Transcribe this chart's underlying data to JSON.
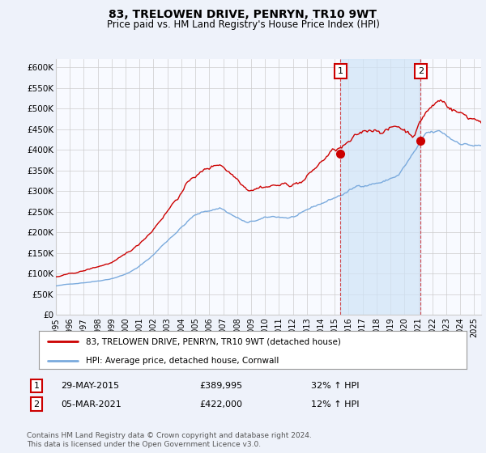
{
  "title": "83, TRELOWEN DRIVE, PENRYN, TR10 9WT",
  "subtitle": "Price paid vs. HM Land Registry's House Price Index (HPI)",
  "title_fontsize": 10,
  "subtitle_fontsize": 8.5,
  "ylim": [
    0,
    620000
  ],
  "yticks": [
    0,
    50000,
    100000,
    150000,
    200000,
    250000,
    300000,
    350000,
    400000,
    450000,
    500000,
    550000,
    600000
  ],
  "ytick_labels": [
    "£0",
    "£50K",
    "£100K",
    "£150K",
    "£200K",
    "£250K",
    "£300K",
    "£350K",
    "£400K",
    "£450K",
    "£500K",
    "£550K",
    "£600K"
  ],
  "background_color": "#eef2fa",
  "plot_bg_color": "#f8faff",
  "grid_color": "#cccccc",
  "red_line_color": "#cc0000",
  "blue_line_color": "#7aaadd",
  "shade_color": "#d0e4f7",
  "transaction1_year": 2015.42,
  "transaction1_price": 389995,
  "transaction1_date": "29-MAY-2015",
  "transaction1_pct": "32% ↑ HPI",
  "transaction2_year": 2021.17,
  "transaction2_price": 422000,
  "transaction2_date": "05-MAR-2021",
  "transaction2_pct": "12% ↑ HPI",
  "legend_line1": "83, TRELOWEN DRIVE, PENRYN, TR10 9WT (detached house)",
  "legend_line2": "HPI: Average price, detached house, Cornwall",
  "footer1": "Contains HM Land Registry data © Crown copyright and database right 2024.",
  "footer2": "This data is licensed under the Open Government Licence v3.0.",
  "xlim_start": 1995.0,
  "xlim_end": 2025.5
}
